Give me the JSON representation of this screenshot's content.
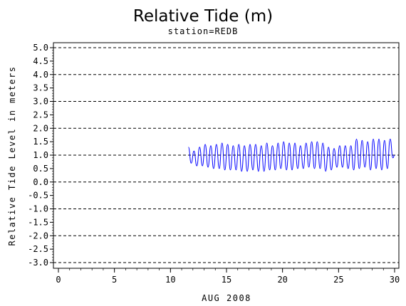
{
  "chart_data": {
    "type": "line",
    "title": "Relative Tide (m)",
    "subtitle": "station=REDB",
    "xlabel": "AUG 2008",
    "ylabel": "Relative Tide Level in meters",
    "xlim": [
      0,
      30.3
    ],
    "ylim": [
      -3.0,
      5.1
    ],
    "xticks": [
      0,
      5,
      10,
      15,
      20,
      25,
      30
    ],
    "xtick_labels": [
      "0",
      "5",
      "10",
      "15",
      "20",
      "25",
      "30"
    ],
    "yticks": [
      5.0,
      4.5,
      4.0,
      3.5,
      3.0,
      2.5,
      2.0,
      1.5,
      1.0,
      0.5,
      0.0,
      -0.5,
      -1.0,
      -1.5,
      -2.0,
      -2.5,
      -3.0
    ],
    "ytick_labels": [
      "5.0",
      "4.5",
      "4.0",
      "3.5",
      "3.0",
      "2.5",
      "2.0",
      "1.5",
      "1.0",
      "0.5",
      "0.0",
      "-0.5",
      "-1.0",
      "-1.5",
      "-2.0",
      "-2.5",
      "-3.0"
    ],
    "gridlines_y": [
      5.0,
      4.0,
      3.0,
      2.0,
      1.0,
      0.0,
      -1.0,
      -2.0,
      -3.0
    ],
    "grid_style": "dashed",
    "line_color": "#0000ff",
    "series": [
      {
        "x": [
          11.6,
          11.85,
          12.1,
          12.35,
          12.6,
          12.85,
          13.1,
          13.35,
          13.6,
          13.85,
          14.1,
          14.35,
          14.6,
          14.85,
          15.1,
          15.35,
          15.6,
          15.85,
          16.1,
          16.35,
          16.6,
          16.85,
          17.1,
          17.35,
          17.6,
          17.85,
          18.1,
          18.35,
          18.6,
          18.85,
          19.1,
          19.35,
          19.6,
          19.85,
          20.1,
          20.35,
          20.6,
          20.85,
          21.1,
          21.35,
          21.6,
          21.85,
          22.1,
          22.35,
          22.6,
          22.85,
          23.1,
          23.35,
          23.6,
          23.85,
          24.1,
          24.35,
          24.6,
          24.85,
          25.1,
          25.35,
          25.6,
          25.85,
          26.1,
          26.35,
          26.6,
          26.85,
          27.1,
          27.35,
          27.6,
          27.85,
          28.1,
          28.35,
          28.6,
          28.85,
          29.1,
          29.35,
          29.6,
          29.85,
          30.0
        ],
        "y": [
          1.3,
          0.7,
          1.15,
          0.6,
          1.3,
          0.6,
          1.4,
          0.55,
          1.35,
          0.5,
          1.4,
          0.5,
          1.45,
          0.45,
          1.4,
          0.45,
          1.35,
          0.45,
          1.4,
          0.4,
          1.35,
          0.4,
          1.4,
          0.45,
          1.4,
          0.4,
          1.35,
          0.4,
          1.45,
          0.45,
          1.35,
          0.45,
          1.45,
          0.5,
          1.5,
          0.45,
          1.45,
          0.45,
          1.45,
          0.5,
          1.35,
          0.5,
          1.45,
          0.55,
          1.5,
          0.5,
          1.5,
          0.5,
          1.45,
          0.4,
          1.3,
          0.45,
          1.25,
          0.55,
          1.35,
          0.55,
          1.35,
          0.5,
          1.35,
          0.45,
          1.6,
          0.5,
          1.55,
          0.55,
          1.5,
          0.45,
          1.6,
          0.5,
          1.6,
          0.45,
          1.55,
          0.5,
          1.6,
          0.9,
          1.0
        ]
      }
    ]
  }
}
